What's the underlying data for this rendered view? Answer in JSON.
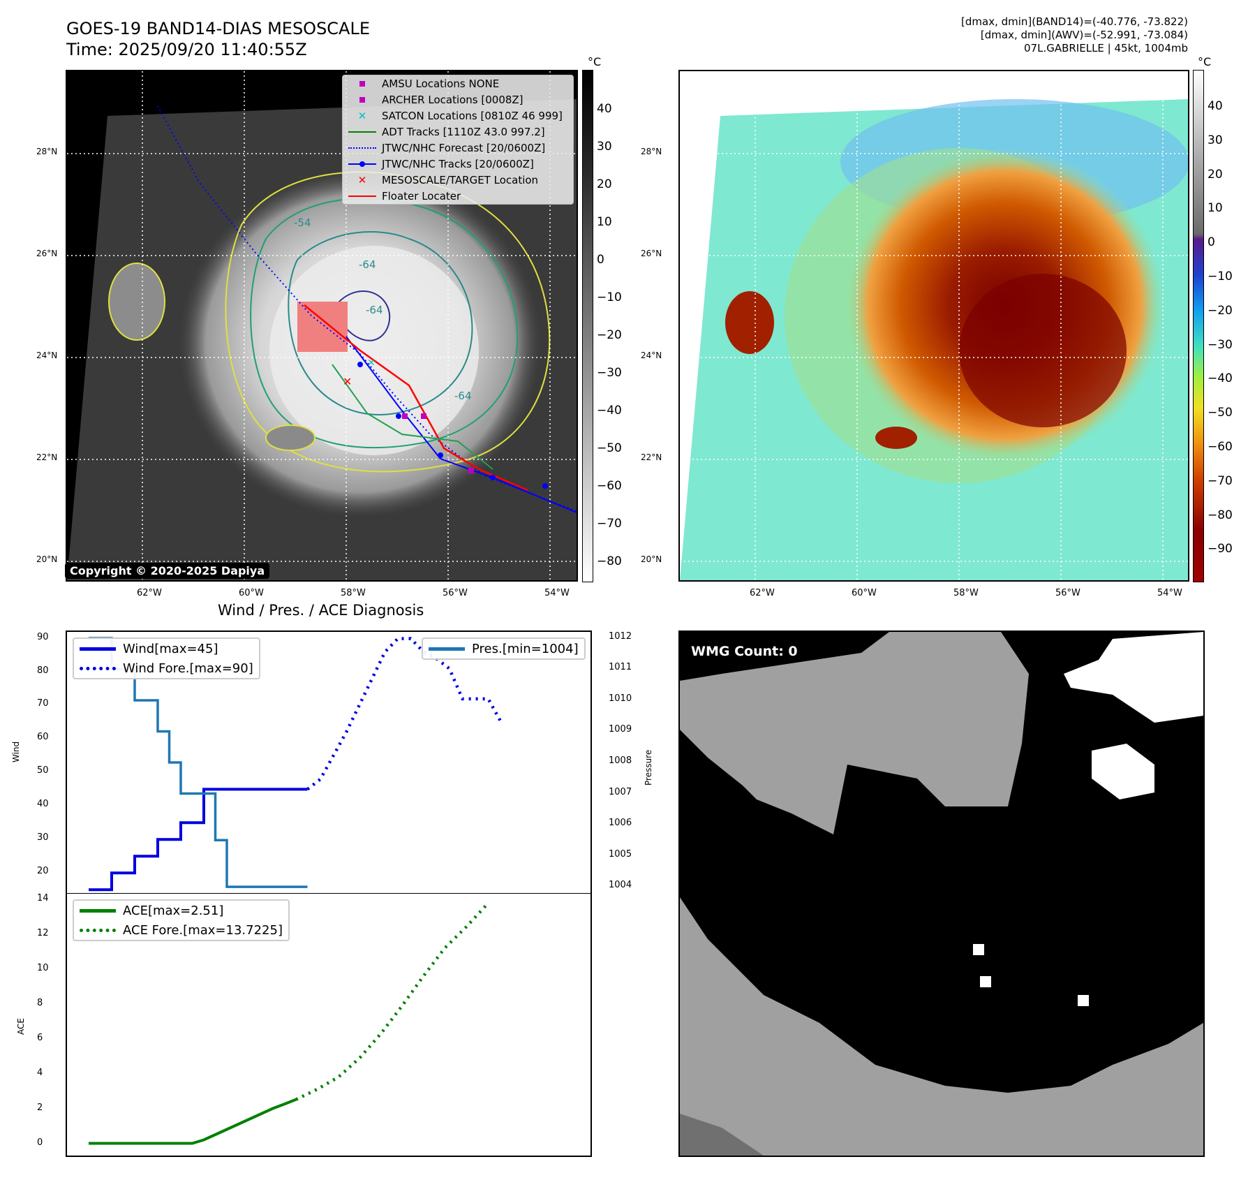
{
  "header": {
    "title_line1": "GOES-19 BAND14-DIAS MESOSCALE",
    "title_line2": "Time: 2025/09/20 11:40:55Z",
    "meta_line1": "[dmax, dmin](BAND14)=(-40.776, -73.822)",
    "meta_line2": "[dmax, dmin](AWV)=(-52.991, -73.084)",
    "meta_line3": "07L.GABRIELLE | 45kt, 1004mb"
  },
  "copyright": "Copyright © 2020-2025 Dapiya",
  "maps": {
    "lat_labels": [
      "28°N",
      "26°N",
      "24°N",
      "22°N",
      "20°N"
    ],
    "lon_labels": [
      "62°W",
      "60°W",
      "58°W",
      "56°W",
      "54°W"
    ],
    "contour_labels": [
      "-54",
      "-64",
      "-64",
      "-64"
    ],
    "left_colorbar": {
      "unit": "°C",
      "ticks": [
        "40",
        "30",
        "20",
        "10",
        "0",
        "−10",
        "−20",
        "−30",
        "−40",
        "−50",
        "−60",
        "−70",
        "−80"
      ]
    },
    "right_colorbar": {
      "unit": "°C",
      "ticks": [
        "40",
        "30",
        "20",
        "10",
        "0",
        "−10",
        "−20",
        "−30",
        "−40",
        "−50",
        "−60",
        "−70",
        "−80",
        "−90"
      ]
    },
    "legend": [
      {
        "label": "AMSU Locations NONE",
        "color": "#bf00bf",
        "marker": "square"
      },
      {
        "label": "ARCHER Locations [0008Z]",
        "color": "#bf00bf",
        "marker": "square"
      },
      {
        "label": "SATCON Locations [0810Z 46 999]",
        "color": "#00bfbf",
        "marker": "x"
      },
      {
        "label": "ADT Tracks [1110Z 43.0 997.2]",
        "color": "#008000",
        "marker": "line"
      },
      {
        "label": "JTWC/NHC Forecast [20/0600Z]",
        "color": "#0000ff",
        "marker": "dotted"
      },
      {
        "label": "JTWC/NHC Tracks [20/0600Z]",
        "color": "#0000ff",
        "marker": "line-dot"
      },
      {
        "label": "MESOSCALE/TARGET Location",
        "color": "#ff0000",
        "marker": "x"
      },
      {
        "label": "Floater Locater",
        "color": "#ff0000",
        "marker": "line"
      }
    ]
  },
  "chart_data": [
    {
      "type": "line",
      "title": "Wind / Pres. / ACE Diagnosis",
      "ylabel": "Wind",
      "ylabel_right": "Pressure",
      "yticks": [
        "90",
        "80",
        "70",
        "60",
        "50",
        "40",
        "30",
        "20"
      ],
      "yticks_right": [
        "1012",
        "1011",
        "1010",
        "1009",
        "1008",
        "1007",
        "1006",
        "1005",
        "1004"
      ],
      "ylim": [
        14,
        92
      ],
      "ylim_right": [
        1003.8,
        1012.2
      ],
      "series": [
        {
          "name": "Wind[max=45]",
          "axis": "left",
          "color": "#0000e0",
          "style": "solid",
          "values": [
            15,
            15,
            20,
            20,
            25,
            25,
            30,
            30,
            35,
            35,
            45,
            45,
            45,
            45,
            45,
            45,
            45,
            45,
            45
          ]
        },
        {
          "name": "Wind Fore.[max=90]",
          "axis": "left",
          "color": "#0000e0",
          "style": "dotted",
          "values": [
            45,
            48,
            55,
            62,
            70,
            78,
            86,
            90,
            90,
            86,
            84,
            81,
            72,
            72,
            72,
            65
          ]
        },
        {
          "name": "Pres.[min=1004]",
          "axis": "right",
          "color": "#1f77b4",
          "style": "solid",
          "values": [
            1012,
            1012,
            1011,
            1011,
            1010,
            1010,
            1009,
            1008,
            1007,
            1007,
            1007,
            1005.5,
            1004,
            1004,
            1004,
            1004,
            1004,
            1004,
            1004
          ]
        }
      ]
    },
    {
      "type": "line",
      "ylabel": "ACE",
      "yticks": [
        "14",
        "12",
        "10",
        "8",
        "6",
        "4",
        "2",
        "0"
      ],
      "ylim": [
        -0.7,
        14.3
      ],
      "series": [
        {
          "name": "ACE[max=2.51]",
          "color": "#008000",
          "style": "solid",
          "values": [
            0,
            0,
            0,
            0,
            0,
            0,
            0,
            0,
            0,
            0,
            0.2,
            0.5,
            0.8,
            1.1,
            1.4,
            1.7,
            2.0,
            2.25,
            2.51
          ]
        },
        {
          "name": "ACE Fore.[max=13.7225]",
          "color": "#008000",
          "style": "dotted",
          "values": [
            2.51,
            3.1,
            3.8,
            4.9,
            6.3,
            7.9,
            9.6,
            11.2,
            12.4,
            13.7225
          ]
        }
      ]
    }
  ],
  "wmg": {
    "label": "WMG Count: 0"
  }
}
